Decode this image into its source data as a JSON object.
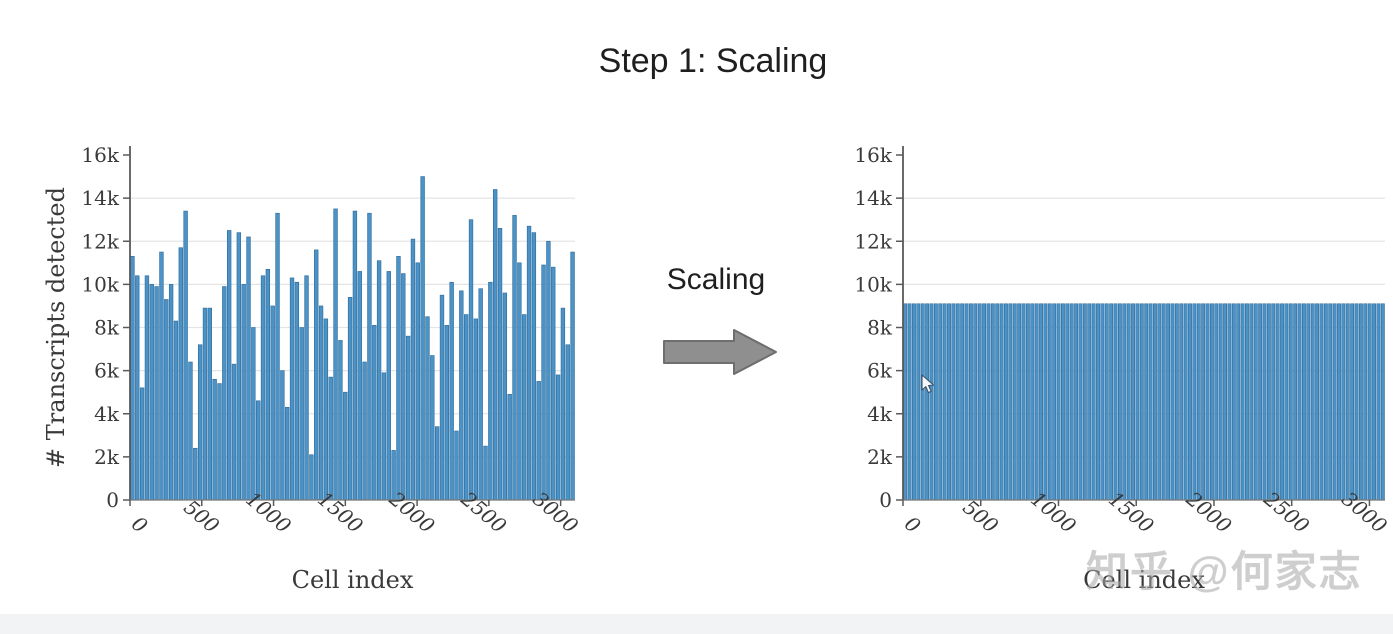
{
  "slide": {
    "title": "Step 1: Scaling"
  },
  "arrow": {
    "label": "Scaling"
  },
  "watermark": {
    "text": "知乎 @何家志"
  },
  "colors": {
    "bar_fill": "#4b93c7",
    "bar_edge": "#2c6999",
    "grid": "#e4e4e4",
    "spine": "#5a5a5a",
    "baseline": "#777777",
    "tick_text": "#3a3a3a",
    "arrow_fill": "#8f8f8f",
    "arrow_edge": "#6e6e6e"
  },
  "chart_data": [
    {
      "type": "bar",
      "name": "raw-counts",
      "title": "",
      "xlabel": "Cell index",
      "ylabel": "# Transcripts detected",
      "xlim": [
        0,
        3100
      ],
      "ylim": [
        0,
        16000
      ],
      "x_ticks": [
        0,
        500,
        1000,
        1500,
        2000,
        2500,
        3000
      ],
      "y_ticks": [
        0,
        2000,
        4000,
        6000,
        8000,
        10000,
        12000,
        14000,
        16000
      ],
      "y_tick_labels": [
        "0",
        "2k",
        "4k",
        "6k",
        "8k",
        "10k",
        "12k",
        "14k",
        "16k"
      ],
      "grid": "horizontal",
      "values": [
        11300,
        10400,
        5200,
        10400,
        10000,
        9900,
        11500,
        9300,
        10000,
        8300,
        11700,
        13400,
        6400,
        2400,
        7200,
        8900,
        8900,
        5600,
        5400,
        9900,
        12500,
        6300,
        12400,
        10000,
        12200,
        8000,
        4600,
        10400,
        10700,
        9000,
        13300,
        6000,
        4300,
        10300,
        10100,
        8000,
        10400,
        2100,
        11600,
        9000,
        8400,
        5700,
        13500,
        7400,
        5000,
        9400,
        13400,
        10600,
        6400,
        13300,
        8100,
        11100,
        5900,
        10600,
        2300,
        11300,
        10500,
        7600,
        12100,
        11000,
        15000,
        8500,
        6700,
        3400,
        9500,
        8100,
        10100,
        3200,
        9700,
        8600,
        13000,
        8400,
        9800,
        2500,
        10100,
        14400,
        12600,
        9600,
        4900,
        13200,
        11000,
        8600,
        12700,
        12400,
        5500,
        10900,
        12000,
        10800,
        5800,
        8900,
        7200,
        11500
      ]
    },
    {
      "type": "bar",
      "name": "scaled-counts",
      "title": "",
      "xlabel": "Cell index",
      "ylabel": "",
      "xlim": [
        0,
        3100
      ],
      "ylim": [
        0,
        16000
      ],
      "x_ticks": [
        0,
        500,
        1000,
        1500,
        2000,
        2500,
        3000
      ],
      "y_ticks": [
        0,
        2000,
        4000,
        6000,
        8000,
        10000,
        12000,
        14000,
        16000
      ],
      "y_tick_labels": [
        "0",
        "2k",
        "4k",
        "6k",
        "8k",
        "10k",
        "12k",
        "14k",
        "16k"
      ],
      "grid": "horizontal",
      "n_bars": 110,
      "uniform_value": 9100
    }
  ],
  "ui": {
    "mouse_cursor": {
      "over": "right-chart",
      "approx_data_x": 160,
      "approx_data_y": 5400
    }
  }
}
